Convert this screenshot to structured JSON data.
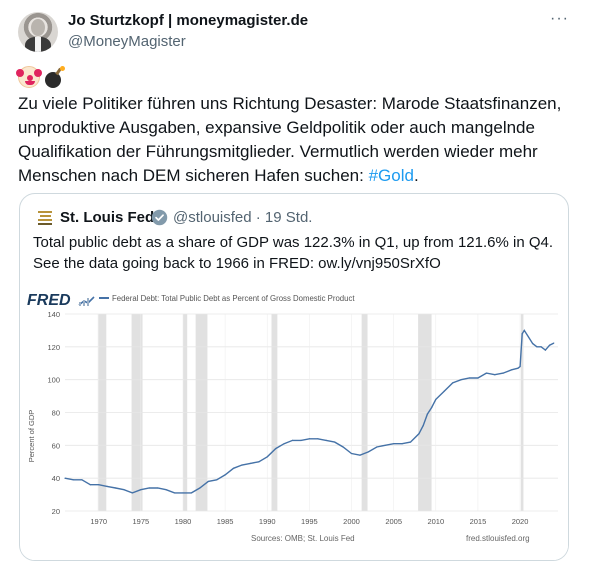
{
  "tweet": {
    "author_name": "Jo Sturtzkopf | moneymagister.de",
    "author_handle": "@MoneyMagister",
    "more_icon": "more-icon",
    "more_label": "···",
    "emojis": [
      "clown-face-icon",
      "bomb-icon"
    ],
    "text_main": "Zu viele Politiker führen uns Richtung Desaster: Marode Staatsfinanzen, unproduktive Ausgaben, expansive Geldpolitik oder auch mangelnde Qualifikation der Führungsmitglieder. Vermutlich werden wieder mehr Menschen nach DEM sicheren Hafen suchen: ",
    "hashtag": "#Gold",
    "text_end": "."
  },
  "quote": {
    "name": "St. Louis Fed",
    "handle_time": "@stlouisfed · 19 Std.",
    "text": "Total public debt as a share of GDP was 122.3% in Q1, up from 121.6% in Q4. See the data going back to 1966 in FRED: ow.ly/vnj950SrXfO"
  },
  "colors": {
    "accent": "#1d9bf0",
    "line": "#4572a7",
    "recession": "#e1e1e1",
    "verified": "#829aab"
  },
  "chart_data": {
    "type": "line",
    "brand": "FRED",
    "legend": "Federal Debt: Total Public Debt as Percent of Gross Domestic Product",
    "ylabel": "Percent of GDP",
    "ylim": [
      20,
      140
    ],
    "yticks": [
      20,
      40,
      60,
      80,
      100,
      120,
      140
    ],
    "xlim": [
      1966,
      2024.5
    ],
    "xticks": [
      1970,
      1975,
      1980,
      1985,
      1990,
      1995,
      2000,
      2005,
      2010,
      2015,
      2020
    ],
    "source": "Sources: OMB; St. Louis Fed",
    "site": "fred.stlouisfed.org",
    "recessions": [
      [
        1969.9,
        1970.9
      ],
      [
        1973.9,
        1975.2
      ],
      [
        1980.0,
        1980.5
      ],
      [
        1981.5,
        1982.9
      ],
      [
        1990.5,
        1991.2
      ],
      [
        2001.2,
        2001.9
      ],
      [
        2007.9,
        2009.5
      ],
      [
        2020.1,
        2020.4
      ]
    ],
    "series": [
      {
        "name": "Federal Debt: Total Public Debt as Percent of Gross Domestic Product",
        "x": [
          1966,
          1967,
          1968,
          1969,
          1970,
          1971,
          1972,
          1973,
          1974,
          1975,
          1976,
          1977,
          1978,
          1979,
          1980,
          1981,
          1982,
          1983,
          1984,
          1985,
          1986,
          1987,
          1988,
          1989,
          1990,
          1991,
          1992,
          1993,
          1994,
          1995,
          1996,
          1997,
          1998,
          1999,
          2000,
          2001,
          2002,
          2003,
          2004,
          2005,
          2006,
          2007,
          2008,
          2008.5,
          2009,
          2009.5,
          2010,
          2011,
          2012,
          2013,
          2014,
          2015,
          2016,
          2017,
          2018,
          2019,
          2019.75,
          2020,
          2020.25,
          2020.5,
          2021,
          2021.5,
          2022,
          2022.5,
          2023,
          2023.5,
          2024
        ],
        "values": [
          40,
          39,
          39,
          36,
          36,
          35,
          34,
          33,
          31,
          33,
          34,
          34,
          33,
          31,
          31,
          31,
          34,
          38,
          39,
          42,
          46,
          48,
          49,
          50,
          53,
          58,
          61,
          63,
          63,
          64,
          64,
          63,
          62,
          59,
          55,
          54,
          56,
          59,
          60,
          61,
          61,
          62,
          67,
          72,
          79,
          83,
          88,
          93,
          98,
          100,
          101,
          101,
          104,
          103,
          104,
          106,
          107,
          108,
          128,
          130,
          126,
          122,
          120,
          120,
          118,
          121,
          122.3
        ]
      }
    ]
  }
}
